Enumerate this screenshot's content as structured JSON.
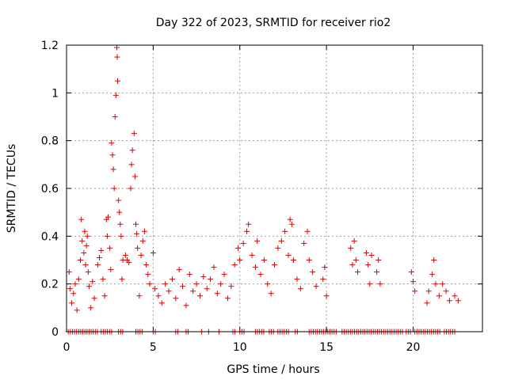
{
  "chart_data": {
    "type": "scatter",
    "title": "Day 322 of 2023, SRMTID for receiver rio2",
    "xlabel": "GPS time / hours",
    "ylabel": "SRMTID / TECUs",
    "xlim": [
      0,
      24
    ],
    "ylim": [
      0,
      1.2
    ],
    "xticks": [
      "0",
      "5",
      "10",
      "15",
      "20"
    ],
    "yticks": [
      "0",
      "0.2",
      "0.4",
      "0.6",
      "0.8",
      "1",
      "1.2"
    ],
    "grid": true,
    "marker": "plus",
    "series": [
      {
        "name": "SRMTID",
        "color": "#e00000",
        "points": [
          [
            0.15,
            0.25
          ],
          [
            0.2,
            0.18
          ],
          [
            0.3,
            0.12
          ],
          [
            0.4,
            0.16
          ],
          [
            0.5,
            0.2
          ],
          [
            0.6,
            0.09
          ],
          [
            0.7,
            0.22
          ],
          [
            0.8,
            0.3
          ],
          [
            0.85,
            0.47
          ],
          [
            0.9,
            0.38
          ],
          [
            1.0,
            0.33
          ],
          [
            1.05,
            0.42
          ],
          [
            1.1,
            0.28
          ],
          [
            1.15,
            0.36
          ],
          [
            1.2,
            0.4
          ],
          [
            1.25,
            0.25
          ],
          [
            1.3,
            0.19
          ],
          [
            1.4,
            0.1
          ],
          [
            1.5,
            0.21
          ],
          [
            1.6,
            0.14
          ],
          [
            1.8,
            0.28
          ],
          [
            1.9,
            0.31
          ],
          [
            2.0,
            0.34
          ],
          [
            2.1,
            0.22
          ],
          [
            2.2,
            0.15
          ],
          [
            2.3,
            0.47
          ],
          [
            2.35,
            0.4
          ],
          [
            2.4,
            0.48
          ],
          [
            2.5,
            0.35
          ],
          [
            2.55,
            0.26
          ],
          [
            2.6,
            0.79
          ],
          [
            2.65,
            0.74
          ],
          [
            2.7,
            0.68
          ],
          [
            2.75,
            0.6
          ],
          [
            2.8,
            0.9
          ],
          [
            2.85,
            0.99
          ],
          [
            2.9,
            1.19
          ],
          [
            2.92,
            1.15
          ],
          [
            2.95,
            1.05
          ],
          [
            3.0,
            0.55
          ],
          [
            3.05,
            0.5
          ],
          [
            3.1,
            0.45
          ],
          [
            3.15,
            0.4
          ],
          [
            3.2,
            0.22
          ],
          [
            3.25,
            0.3
          ],
          [
            3.4,
            0.32
          ],
          [
            3.5,
            0.3
          ],
          [
            3.6,
            0.29
          ],
          [
            3.7,
            0.6
          ],
          [
            3.75,
            0.7
          ],
          [
            3.8,
            0.76
          ],
          [
            3.9,
            0.83
          ],
          [
            3.95,
            0.65
          ],
          [
            4.0,
            0.45
          ],
          [
            4.05,
            0.41
          ],
          [
            4.1,
            0.35
          ],
          [
            4.2,
            0.15
          ],
          [
            4.3,
            0.32
          ],
          [
            4.4,
            0.38
          ],
          [
            4.5,
            0.42
          ],
          [
            4.6,
            0.28
          ],
          [
            4.7,
            0.24
          ],
          [
            4.8,
            0.2
          ],
          [
            5.0,
            0.33
          ],
          [
            5.1,
            0.18
          ],
          [
            5.3,
            0.15
          ],
          [
            5.5,
            0.12
          ],
          [
            5.7,
            0.2
          ],
          [
            5.9,
            0.17
          ],
          [
            6.1,
            0.22
          ],
          [
            6.3,
            0.14
          ],
          [
            6.5,
            0.26
          ],
          [
            6.7,
            0.19
          ],
          [
            6.9,
            0.11
          ],
          [
            7.1,
            0.24
          ],
          [
            7.3,
            0.17
          ],
          [
            7.5,
            0.2
          ],
          [
            7.7,
            0.15
          ],
          [
            7.9,
            0.23
          ],
          [
            8.1,
            0.18
          ],
          [
            8.3,
            0.22
          ],
          [
            8.5,
            0.27
          ],
          [
            8.7,
            0.16
          ],
          [
            8.9,
            0.2
          ],
          [
            9.1,
            0.24
          ],
          [
            9.3,
            0.14
          ],
          [
            9.5,
            0.19
          ],
          [
            9.7,
            0.28
          ],
          [
            9.9,
            0.35
          ],
          [
            10.0,
            0.3
          ],
          [
            10.2,
            0.37
          ],
          [
            10.4,
            0.42
          ],
          [
            10.5,
            0.45
          ],
          [
            10.7,
            0.32
          ],
          [
            10.9,
            0.27
          ],
          [
            11.0,
            0.38
          ],
          [
            11.2,
            0.24
          ],
          [
            11.4,
            0.3
          ],
          [
            11.6,
            0.2
          ],
          [
            11.8,
            0.16
          ],
          [
            12.0,
            0.28
          ],
          [
            12.2,
            0.35
          ],
          [
            12.4,
            0.38
          ],
          [
            12.6,
            0.42
          ],
          [
            12.8,
            0.32
          ],
          [
            12.9,
            0.47
          ],
          [
            13.0,
            0.45
          ],
          [
            13.1,
            0.3
          ],
          [
            13.3,
            0.22
          ],
          [
            13.5,
            0.18
          ],
          [
            13.7,
            0.37
          ],
          [
            13.9,
            0.42
          ],
          [
            14.0,
            0.3
          ],
          [
            14.2,
            0.25
          ],
          [
            14.4,
            0.19
          ],
          [
            14.8,
            0.22
          ],
          [
            14.9,
            0.27
          ],
          [
            15.0,
            0.15
          ],
          [
            16.4,
            0.35
          ],
          [
            16.5,
            0.28
          ],
          [
            16.6,
            0.38
          ],
          [
            16.7,
            0.3
          ],
          [
            16.8,
            0.25
          ],
          [
            17.3,
            0.33
          ],
          [
            17.4,
            0.28
          ],
          [
            17.5,
            0.2
          ],
          [
            17.6,
            0.32
          ],
          [
            17.9,
            0.25
          ],
          [
            18.0,
            0.3
          ],
          [
            18.1,
            0.2
          ],
          [
            19.9,
            0.25
          ],
          [
            20.0,
            0.21
          ],
          [
            20.1,
            0.17
          ],
          [
            20.8,
            0.12
          ],
          [
            20.9,
            0.17
          ],
          [
            21.1,
            0.24
          ],
          [
            21.2,
            0.3
          ],
          [
            21.3,
            0.2
          ],
          [
            21.5,
            0.15
          ],
          [
            21.7,
            0.2
          ],
          [
            21.9,
            0.17
          ],
          [
            22.1,
            0.13
          ],
          [
            22.4,
            0.15
          ],
          [
            22.6,
            0.13
          ]
        ]
      }
    ],
    "zero_line": {
      "y": 0,
      "segments": [
        [
          0.1,
          1.8
        ],
        [
          2.0,
          2.6
        ],
        [
          3.0,
          3.3
        ],
        [
          4.0,
          4.4
        ],
        [
          5.0,
          5.2
        ],
        [
          6.3,
          6.5
        ],
        [
          6.9,
          7.1
        ],
        [
          7.8,
          7.9
        ],
        [
          8.2,
          8.3
        ],
        [
          8.8,
          8.9
        ],
        [
          9.6,
          9.8
        ],
        [
          10.0,
          10.3
        ],
        [
          10.9,
          11.4
        ],
        [
          11.7,
          12.0
        ],
        [
          12.2,
          12.8
        ],
        [
          13.2,
          13.4
        ],
        [
          14.0,
          15.6
        ],
        [
          15.9,
          19.4
        ],
        [
          19.6,
          19.9
        ],
        [
          20.1,
          21.6
        ],
        [
          21.8,
          22.5
        ]
      ],
      "spacing": 0.12
    }
  }
}
